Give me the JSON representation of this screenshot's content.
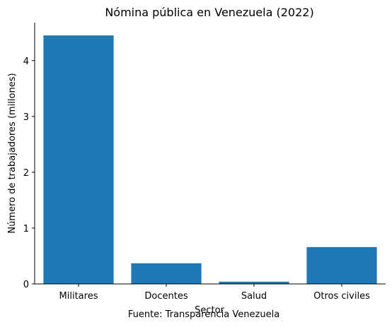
{
  "chart_data": {
    "type": "bar",
    "title": "Nómina pública en Venezuela (2022)",
    "xlabel": "Sector",
    "ylabel": "Número de trabajadores (millones)",
    "categories": [
      "Militares",
      "Docentes",
      "Salud",
      "Otros civiles"
    ],
    "values": [
      4.45,
      0.37,
      0.04,
      0.66
    ],
    "ylim": [
      0,
      4.68
    ],
    "yticks": [
      0,
      1,
      2,
      3,
      4
    ],
    "grid": false,
    "bar_color": "#1f77b4",
    "annotation": "Fuente: Transparencia Venezuela"
  }
}
